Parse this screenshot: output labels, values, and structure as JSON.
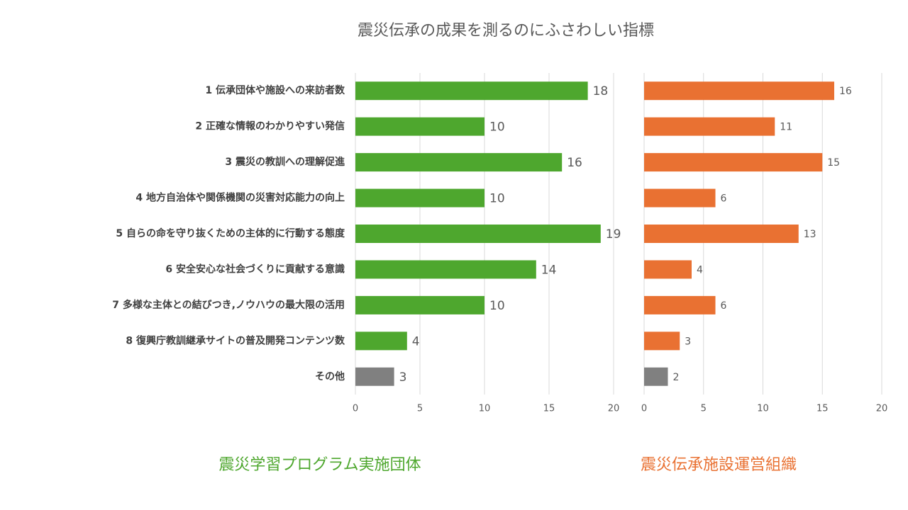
{
  "chart_data": [
    {
      "type": "bar",
      "orientation": "horizontal",
      "title": "震災伝承の成果を測るのにふさわしい指標",
      "caption": "震災学習プログラム実施団体",
      "categories": [
        "1 伝承団体や施設への来訪者数",
        "2 正確な情報のわかりやすい発信",
        "3 震災の教訓への理解促進",
        "4 地方自治体や関係機関の災害対応能力の向上",
        "5  自らの命を守り抜くための主体的に行動する態度",
        "6 安全安心な社会づくりに貢献する意識",
        "7 多様な主体との結びつき,ノウハウの最大限の活用",
        "8 復興庁教訓継承サイトの普及開発コンテンツ数",
        "その他"
      ],
      "values": [
        18,
        10,
        16,
        10,
        19,
        14,
        10,
        4,
        3
      ],
      "colors": [
        "#4ea72e",
        "#4ea72e",
        "#4ea72e",
        "#4ea72e",
        "#4ea72e",
        "#4ea72e",
        "#4ea72e",
        "#4ea72e",
        "#808080"
      ],
      "xlim": [
        0,
        20
      ],
      "xticks": [
        0,
        5,
        10,
        15,
        20
      ],
      "grid": true
    },
    {
      "type": "bar",
      "orientation": "horizontal",
      "caption": "震災伝承施設運営組織",
      "values": [
        16,
        11,
        15,
        6,
        13,
        4,
        6,
        3,
        2
      ],
      "colors": [
        "#e97132",
        "#e97132",
        "#e97132",
        "#e97132",
        "#e97132",
        "#e97132",
        "#e97132",
        "#e97132",
        "#808080"
      ],
      "xlim": [
        0,
        20
      ],
      "xticks": [
        0,
        5,
        10,
        15,
        20
      ],
      "grid": true
    }
  ]
}
